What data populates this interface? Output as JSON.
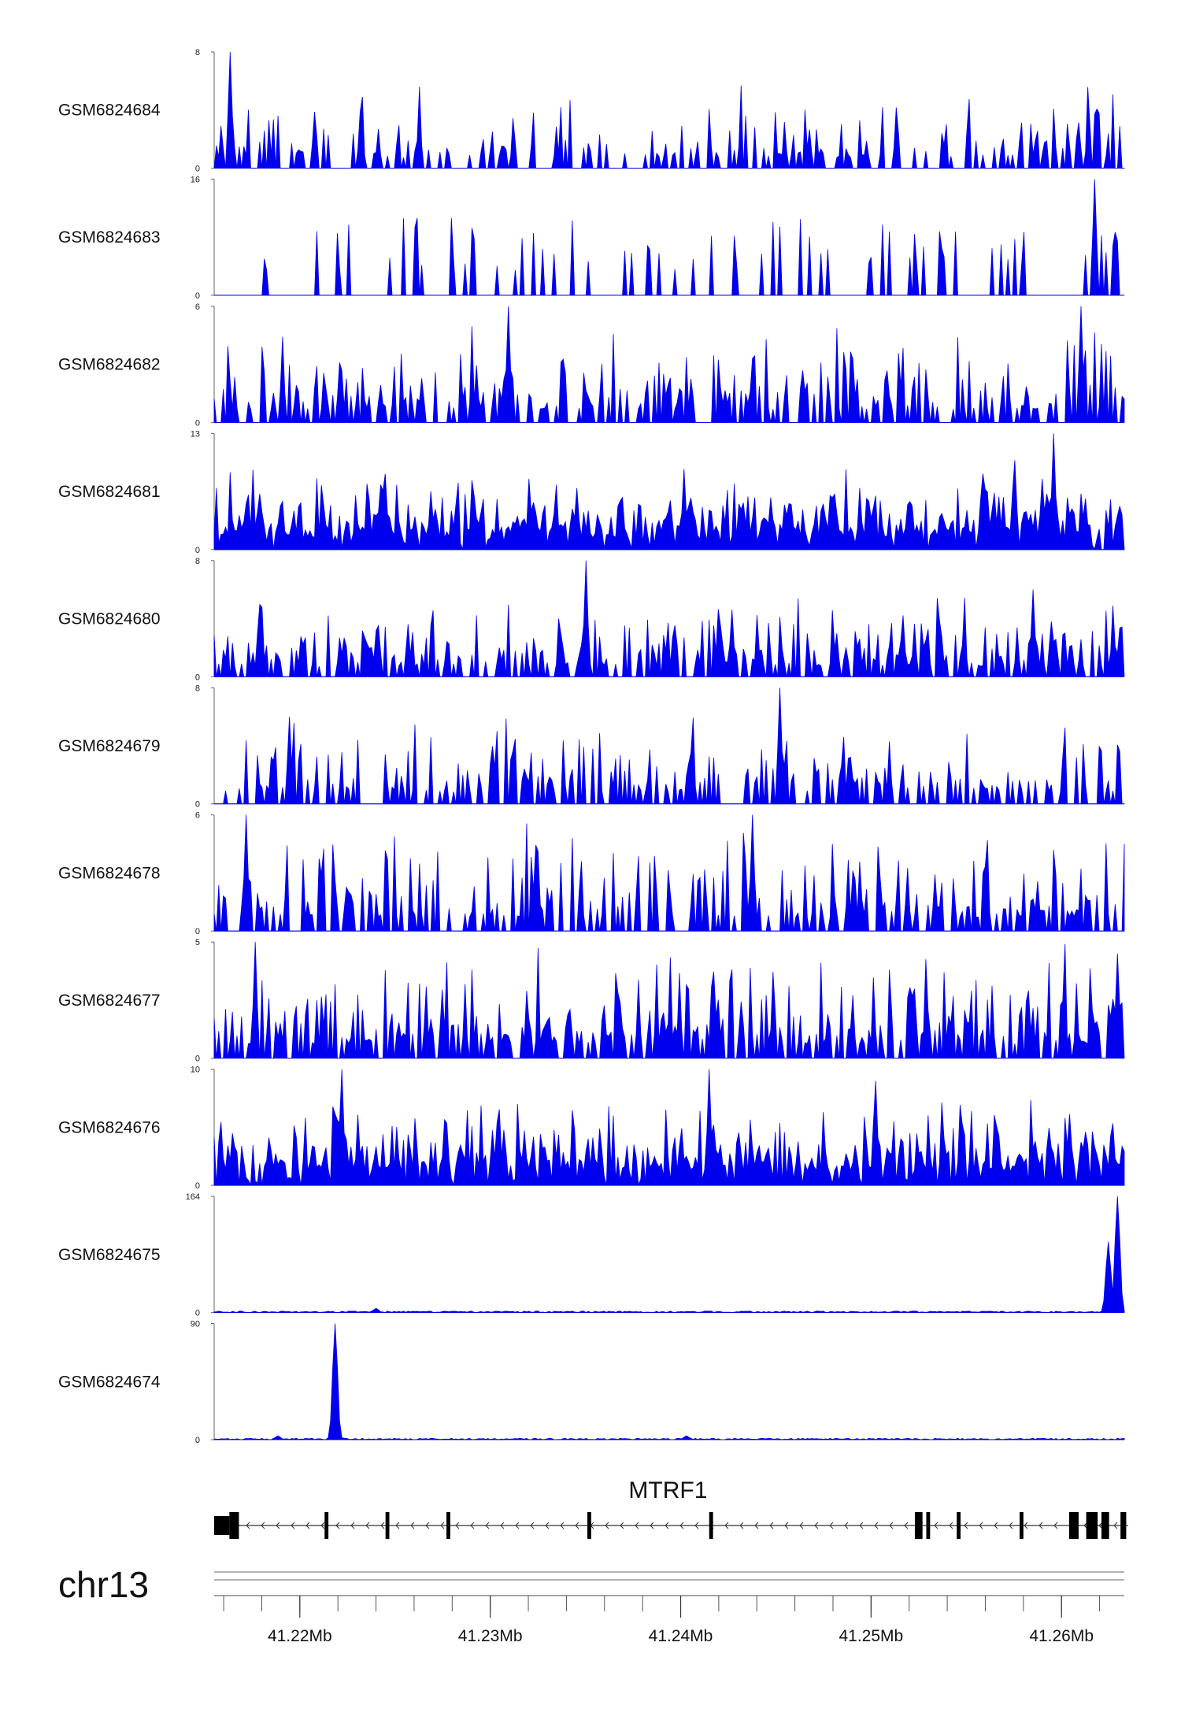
{
  "chart_data": {
    "type": "area",
    "chromosome": "chr13",
    "gene": {
      "name": "MTRF1",
      "strand": "-",
      "start": 41.2155,
      "end": 41.2635,
      "exons": [
        [
          41.2155,
          41.2163,
          "utr"
        ],
        [
          41.2163,
          41.2168,
          "cds"
        ],
        [
          41.2213,
          41.2215,
          "cds"
        ],
        [
          41.2245,
          41.2247,
          "cds"
        ],
        [
          41.2277,
          41.2279,
          "cds"
        ],
        [
          41.2351,
          41.2353,
          "cds"
        ],
        [
          41.2415,
          41.2417,
          "cds"
        ],
        [
          41.2523,
          41.2527,
          "cds"
        ],
        [
          41.2529,
          41.2531,
          "cds"
        ],
        [
          41.2545,
          41.2547,
          "cds"
        ],
        [
          41.2578,
          41.258,
          "cds"
        ],
        [
          41.2604,
          41.2609,
          "cds"
        ],
        [
          41.2613,
          41.2619,
          "cds"
        ],
        [
          41.2621,
          41.2625,
          "cds"
        ],
        [
          41.2631,
          41.2634,
          "cds"
        ]
      ]
    },
    "genome_axis": {
      "xlim": [
        41.2155,
        41.2633
      ],
      "ticks": [
        41.22,
        41.23,
        41.24,
        41.25,
        41.26
      ],
      "tick_labels": [
        "41.22Mb",
        "41.23Mb",
        "41.24Mb",
        "41.25Mb",
        "41.26Mb"
      ]
    },
    "fill_color": "#0000ee",
    "series": [
      {
        "name": "GSM6824684",
        "ymax": 8,
        "ymax_label": "8",
        "zero_label": "0",
        "style": "spiky",
        "seed": 684,
        "density": 0.42,
        "typical": 0.3,
        "peaks": [
          [
            41.2163,
            8
          ]
        ]
      },
      {
        "name": "GSM6824683",
        "ymax": 16,
        "ymax_label": "16",
        "zero_label": "0",
        "style": "sparse",
        "seed": 683,
        "density": 0.22,
        "typical": 0.42,
        "peaks": [
          [
            41.2618,
            16
          ]
        ]
      },
      {
        "name": "GSM6824682",
        "ymax": 6,
        "ymax_label": "6",
        "zero_label": "0",
        "style": "spiky",
        "seed": 682,
        "density": 0.55,
        "typical": 0.38,
        "peaks": [
          [
            41.231,
            6
          ],
          [
            41.261,
            6
          ]
        ]
      },
      {
        "name": "GSM6824681",
        "ymax": 13,
        "ymax_label": "13",
        "zero_label": "0",
        "style": "dense",
        "seed": 681,
        "density": 0.9,
        "typical": 0.26,
        "peaks": [
          [
            41.2596,
            13
          ],
          [
            41.2402,
            9
          ],
          [
            41.2575,
            10
          ]
        ]
      },
      {
        "name": "GSM6824680",
        "ymax": 8,
        "ymax_label": "8",
        "zero_label": "0",
        "style": "spiky",
        "seed": 680,
        "density": 0.62,
        "typical": 0.3,
        "peaks": [
          [
            41.235,
            8
          ],
          [
            41.2585,
            6
          ]
        ]
      },
      {
        "name": "GSM6824679",
        "ymax": 8,
        "ymax_label": "8",
        "zero_label": "0",
        "style": "spiky",
        "seed": 679,
        "density": 0.48,
        "typical": 0.34,
        "peaks": [
          [
            41.2452,
            8
          ],
          [
            41.2195,
            6
          ]
        ]
      },
      {
        "name": "GSM6824678",
        "ymax": 6,
        "ymax_label": "6",
        "zero_label": "0",
        "style": "spiky",
        "seed": 678,
        "density": 0.5,
        "typical": 0.38,
        "peaks": [
          [
            41.2172,
            6
          ],
          [
            41.2438,
            6
          ]
        ]
      },
      {
        "name": "GSM6824677",
        "ymax": 5,
        "ymax_label": "5",
        "zero_label": "0",
        "style": "spiky",
        "seed": 677,
        "density": 0.7,
        "typical": 0.4,
        "peaks": [
          [
            41.2177,
            5
          ],
          [
            41.263,
            4.5
          ]
        ]
      },
      {
        "name": "GSM6824676",
        "ymax": 10,
        "ymax_label": "10",
        "zero_label": "0",
        "style": "dense",
        "seed": 676,
        "density": 0.85,
        "typical": 0.3,
        "peaks": [
          [
            41.2222,
            10
          ],
          [
            41.2415,
            10
          ],
          [
            41.2503,
            9
          ]
        ]
      },
      {
        "name": "GSM6824675",
        "ymax": 164,
        "ymax_label": "164",
        "zero_label": "0",
        "style": "flat",
        "seed": 675,
        "density": 0.1,
        "typical": 0.01,
        "peaks": [
          [
            41.263,
            164
          ],
          [
            41.2625,
            100
          ],
          [
            41.224,
            6
          ]
        ]
      },
      {
        "name": "GSM6824674",
        "ymax": 90,
        "ymax_label": "90",
        "zero_label": "0",
        "style": "flat",
        "seed": 674,
        "density": 0.1,
        "typical": 0.02,
        "peaks": [
          [
            41.2219,
            90
          ],
          [
            41.2188,
            3
          ],
          [
            41.2403,
            3
          ]
        ]
      }
    ]
  }
}
